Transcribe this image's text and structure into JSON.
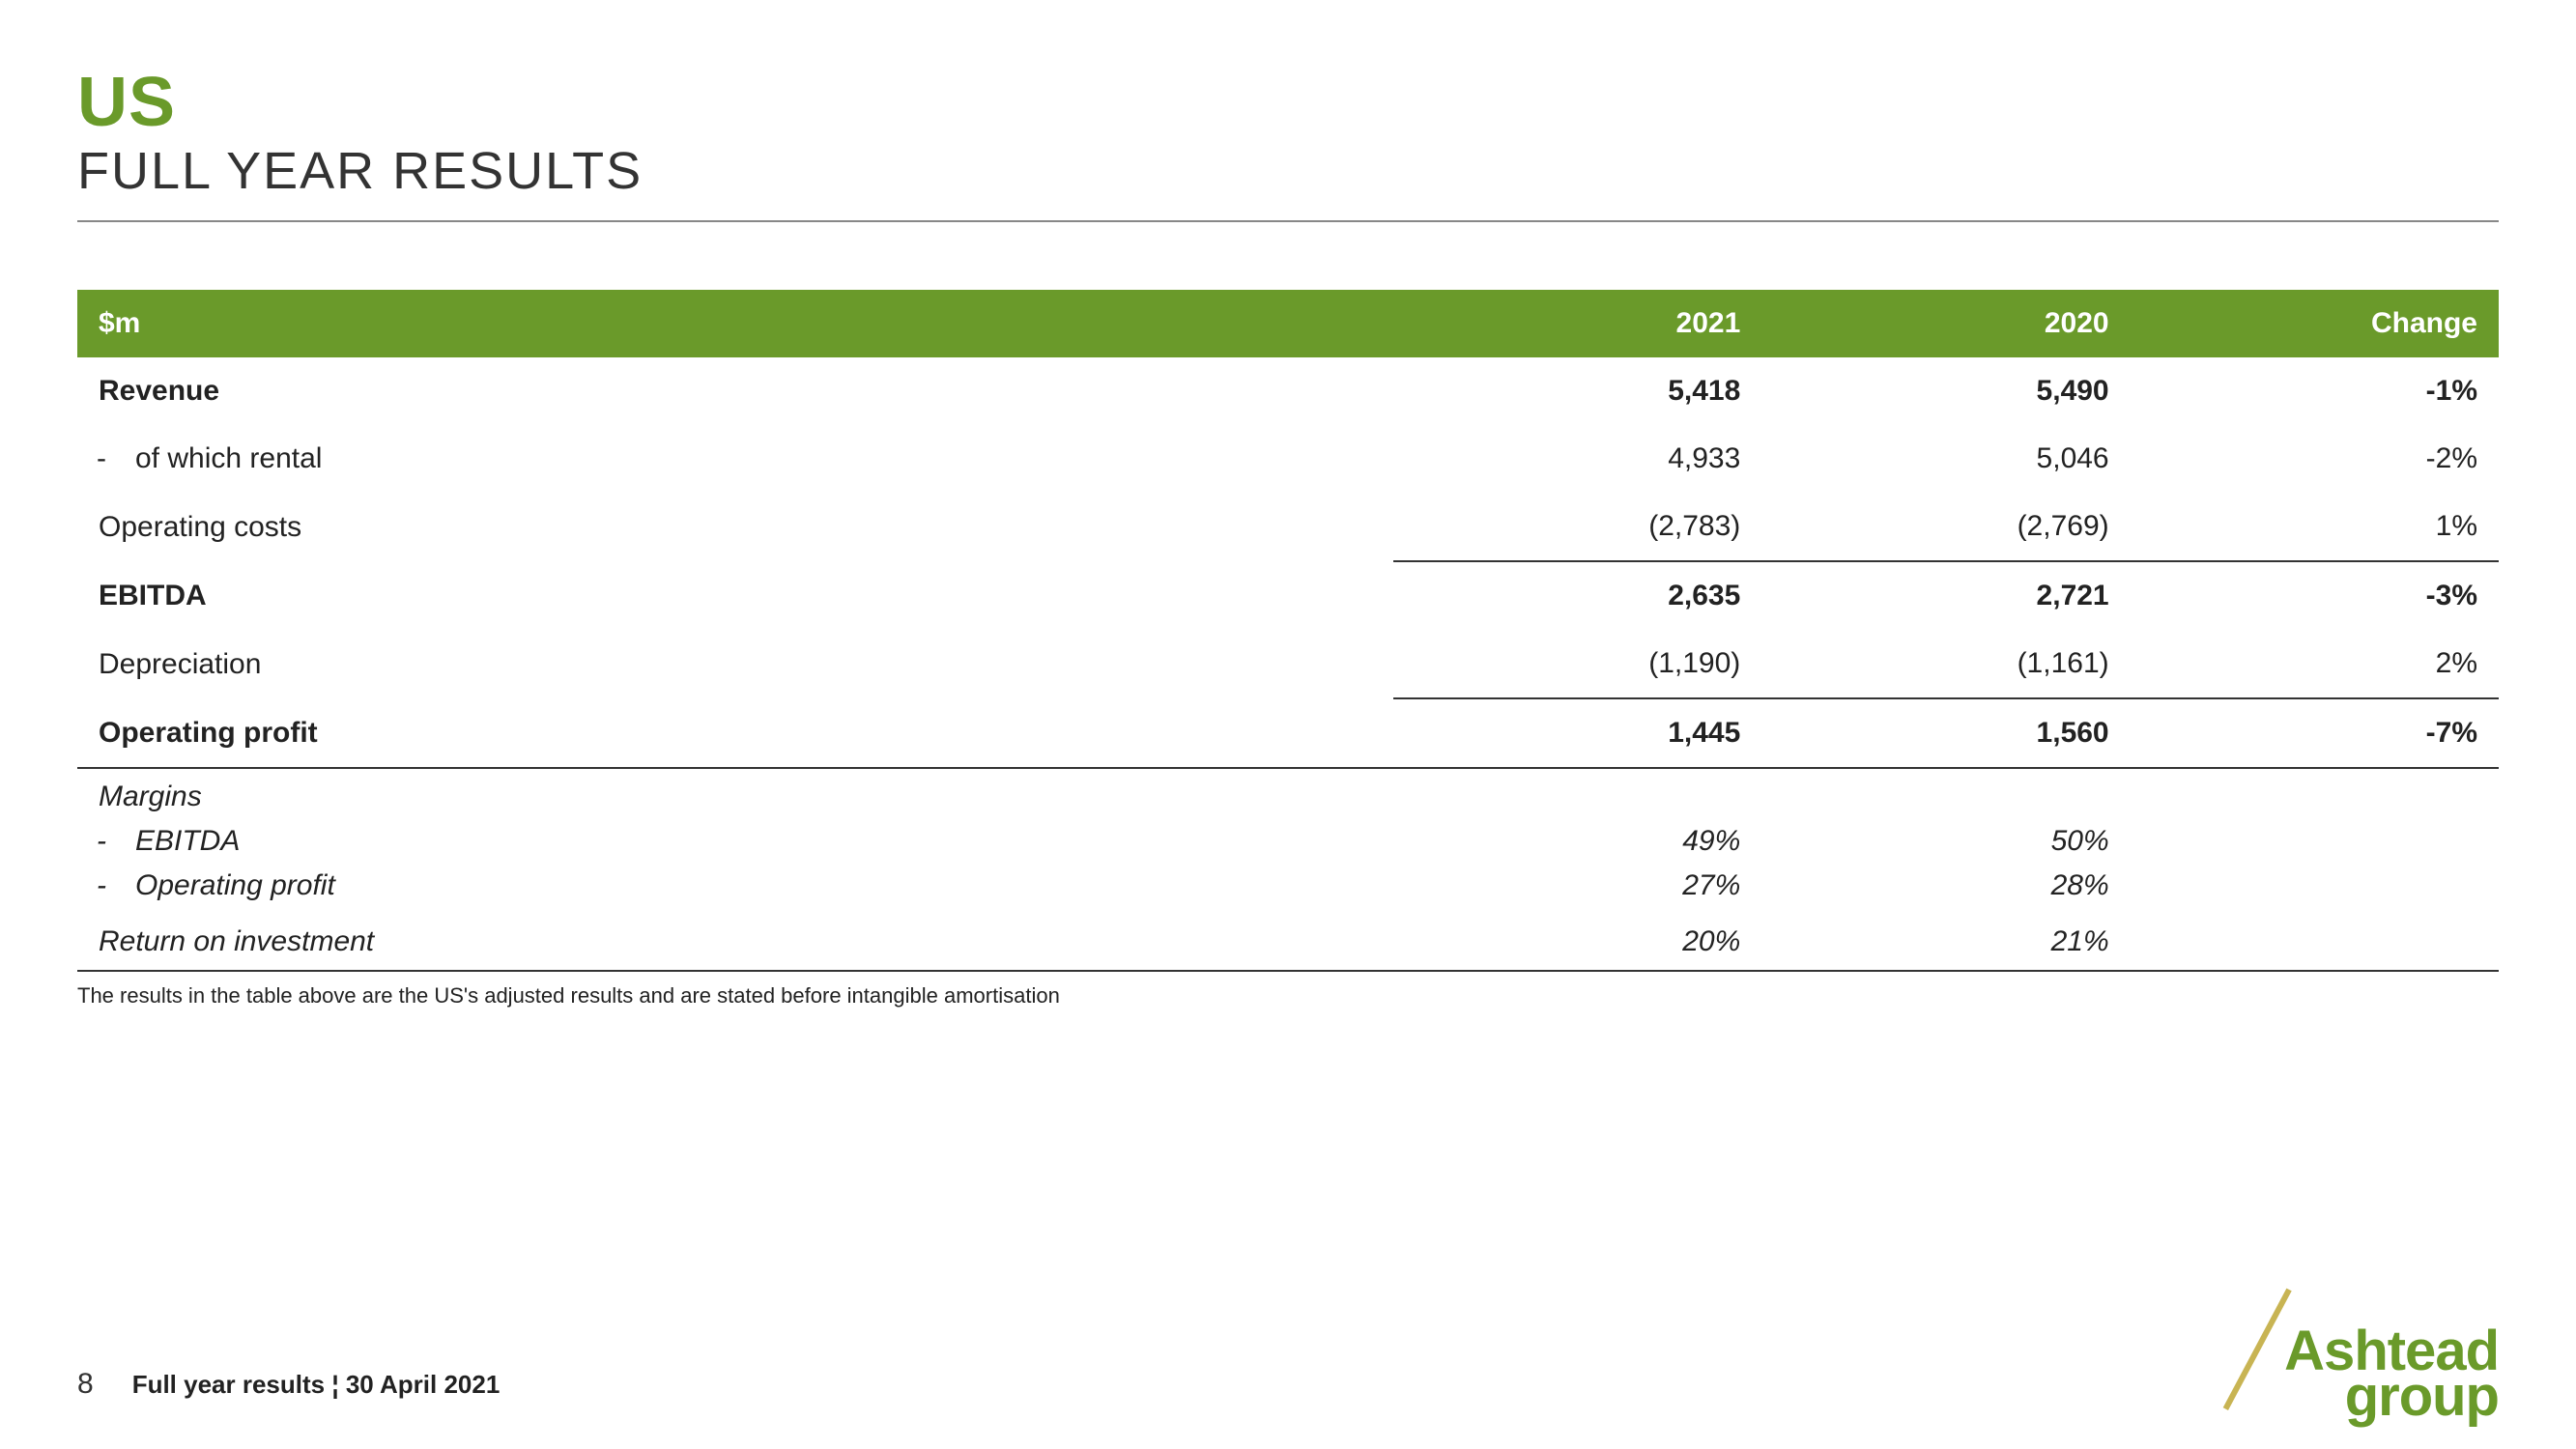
{
  "title": {
    "main": "US",
    "sub": "FULL YEAR RESULTS"
  },
  "colors": {
    "accent": "#6a9a2a",
    "text": "#222222",
    "rule": "#333333",
    "logo_slash": "#c8b453",
    "background": "#ffffff"
  },
  "table": {
    "header": {
      "label": "$m",
      "col1": "2021",
      "col2": "2020",
      "col3": "Change"
    },
    "rows": [
      {
        "label": "Revenue",
        "v1": "5,418",
        "v2": "5,490",
        "v3": "-1%",
        "bold": true
      },
      {
        "label": "of which rental",
        "v1": "4,933",
        "v2": "5,046",
        "v3": "-2%",
        "indent": true,
        "dash": true
      },
      {
        "label": "Operating costs",
        "v1": "(2,783)",
        "v2": "(2,769)",
        "v3": "1%",
        "sub_border": true
      },
      {
        "label": "EBITDA",
        "v1": "2,635",
        "v2": "2,721",
        "v3": "-3%",
        "bold": true
      },
      {
        "label": "Depreciation",
        "v1": "(1,190)",
        "v2": "(1,161)",
        "v3": "2%",
        "sub_border": true
      },
      {
        "label": "Operating profit",
        "v1": "1,445",
        "v2": "1,560",
        "v3": "-7%",
        "bold": true,
        "full_border_bottom": true
      }
    ],
    "margins": {
      "heading": "Margins",
      "items": [
        {
          "label": "EBITDA",
          "v1": "49%",
          "v2": "50%"
        },
        {
          "label": "Operating profit",
          "v1": "27%",
          "v2": "28%"
        }
      ],
      "roi": {
        "label": "Return on investment",
        "v1": "20%",
        "v2": "21%"
      }
    }
  },
  "footnote": "The results in the table above are the US's adjusted results and are stated before intangible amortisation",
  "footer": {
    "page": "8",
    "text": "Full year results ¦ 30 April 2021"
  },
  "logo": {
    "line1": "Ashtead",
    "line2": "group"
  }
}
